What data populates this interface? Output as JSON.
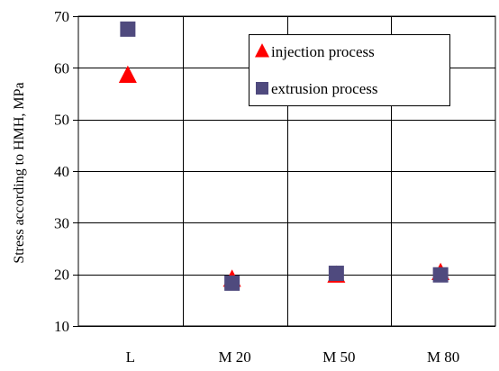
{
  "chart_data": {
    "type": "scatter",
    "ylabel": "Stress according to HMH, MPa",
    "categories": [
      "L",
      "M 20",
      "M 50",
      "M 80"
    ],
    "ylim": [
      10,
      70
    ],
    "yticks": [
      10,
      20,
      30,
      40,
      50,
      60,
      70
    ],
    "grid": true,
    "legend_position": "top-right",
    "series": [
      {
        "name": "injection process",
        "marker": "triangle",
        "color": "#ff0000",
        "values": [
          58.5,
          19.0,
          19.8,
          20.3
        ]
      },
      {
        "name": "extrusion process",
        "marker": "square",
        "color": "#4f4a7e",
        "values": [
          67.5,
          18.3,
          20.2,
          19.9
        ]
      }
    ]
  }
}
